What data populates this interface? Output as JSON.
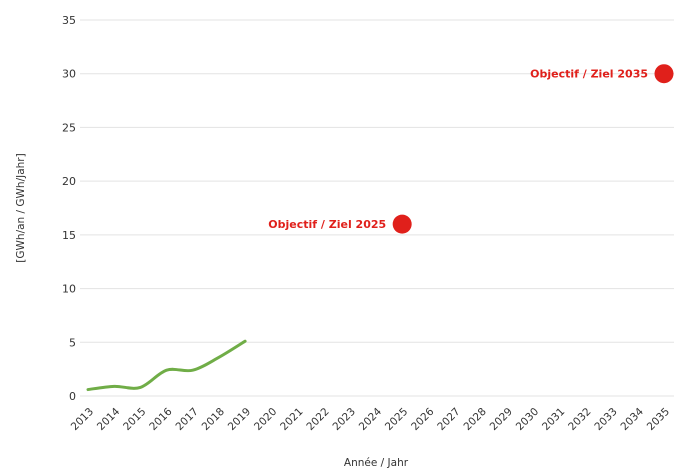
{
  "chart_data": {
    "type": "line",
    "xlabel": "Année / Jahr",
    "ylabel": "[GWh/an / GWh/Jahr]",
    "x_categories": [
      "2013",
      "2014",
      "2015",
      "2016",
      "2017",
      "2018",
      "2019",
      "2020",
      "2021",
      "2022",
      "2023",
      "2024",
      "2025",
      "2026",
      "2027",
      "2028",
      "2029",
      "2030",
      "2031",
      "2032",
      "2033",
      "2034",
      "2035"
    ],
    "ylim": [
      0,
      35
    ],
    "yticks": [
      0,
      5,
      10,
      15,
      20,
      25,
      30,
      35
    ],
    "grid": true,
    "series": [
      {
        "x": [
          "2013",
          "2014",
          "2015",
          "2016",
          "2017",
          "2018",
          "2019"
        ],
        "values": [
          0.6,
          0.9,
          0.8,
          2.4,
          2.4,
          3.6,
          5.1
        ],
        "color": "#70ad47"
      }
    ],
    "targets": [
      {
        "label": "Objectif / Ziel 2025",
        "x": "2025",
        "value": 16,
        "color": "#e0201b"
      },
      {
        "label": "Objectif / Ziel 2035",
        "x": "2035",
        "value": 30,
        "color": "#e0201b"
      }
    ]
  }
}
